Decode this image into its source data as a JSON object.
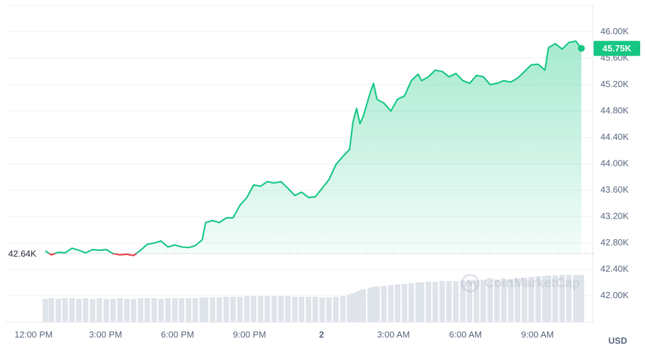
{
  "chart_data": {
    "type": "line",
    "color": "#16c784",
    "below_color": "#ea3943",
    "x": [
      0.49,
      0.74,
      1.03,
      1.31,
      1.6,
      1.89,
      2.17,
      2.46,
      2.74,
      3.03,
      3.31,
      3.6,
      3.89,
      4.17,
      4.46,
      4.74,
      5.03,
      5.31,
      5.6,
      5.89,
      6.17,
      6.46,
      6.74,
      7.03,
      7.17,
      7.46,
      7.74,
      8.03,
      8.31,
      8.6,
      8.89,
      9.17,
      9.46,
      9.74,
      10.03,
      10.31,
      10.6,
      10.89,
      11.17,
      11.46,
      11.74,
      12.03,
      12.31,
      12.6,
      12.89,
      13.17,
      13.31,
      13.46,
      13.6,
      13.74,
      14.03,
      14.17,
      14.31,
      14.6,
      14.89,
      15.17,
      15.46,
      15.74,
      16.03,
      16.17,
      16.46,
      16.74,
      17.03,
      17.31,
      17.6,
      17.89,
      18.17,
      18.46,
      18.74,
      19.03,
      19.31,
      19.6,
      19.89,
      20.17,
      20.46,
      20.74,
      21.03,
      21.31,
      21.46,
      21.74,
      22.03,
      22.31,
      22.6,
      22.83
    ],
    "values": [
      42680,
      42620,
      42660,
      42650,
      42720,
      42690,
      42650,
      42700,
      42690,
      42700,
      42640,
      42620,
      42630,
      42610,
      42690,
      42780,
      42800,
      42830,
      42740,
      42770,
      42740,
      42730,
      42760,
      42850,
      43110,
      43140,
      43110,
      43180,
      43180,
      43370,
      43490,
      43680,
      43660,
      43730,
      43710,
      43730,
      43630,
      43520,
      43570,
      43490,
      43500,
      43630,
      43760,
      43990,
      44110,
      44220,
      44630,
      44840,
      44610,
      44720,
      45080,
      45220,
      44980,
      44920,
      44800,
      44980,
      45030,
      45260,
      45360,
      45260,
      45320,
      45420,
      45400,
      45320,
      45370,
      45260,
      45220,
      45340,
      45320,
      45200,
      45220,
      45260,
      45240,
      45300,
      45400,
      45500,
      45510,
      45420,
      45760,
      45820,
      45740,
      45840,
      45860,
      45750
    ],
    "volume": [
      34,
      35,
      34,
      35,
      35,
      34,
      35,
      34,
      35,
      34,
      34,
      35,
      34,
      34,
      35,
      35,
      35,
      34,
      35,
      35,
      35,
      35,
      35,
      36,
      36,
      36,
      36,
      37,
      37,
      37,
      38,
      38,
      38,
      38,
      38,
      38,
      38,
      37,
      37,
      37,
      37,
      36,
      36,
      37,
      38,
      40,
      42,
      44,
      46,
      48,
      50,
      51,
      52,
      53,
      54,
      55,
      56,
      57,
      58,
      58,
      59,
      59,
      60,
      60,
      60,
      61,
      61,
      61,
      62,
      62,
      62,
      63,
      63,
      64,
      65,
      66,
      67,
      67,
      68,
      68,
      69,
      69,
      69,
      69
    ],
    "volume_lim": [
      0,
      100
    ],
    "volume_color": "#dfe3ea",
    "xlim": [
      -1.17,
      23.31
    ],
    "xticks": [
      {
        "value": 0,
        "label": "12:00 PM"
      },
      {
        "value": 3,
        "label": "3:00 PM"
      },
      {
        "value": 6,
        "label": "6:00 PM"
      },
      {
        "value": 9,
        "label": "9:00 PM"
      },
      {
        "value": 12,
        "label": "2"
      },
      {
        "value": 15,
        "label": "3:00 AM"
      },
      {
        "value": 18,
        "label": "6:00 AM"
      },
      {
        "value": 21,
        "label": "9:00 AM"
      }
    ],
    "ylim": [
      41600,
      46400
    ],
    "yticks": [
      {
        "value": 42000,
        "label": "42.00K"
      },
      {
        "value": 42400,
        "label": "42.40K"
      },
      {
        "value": 42800,
        "label": "42.80K"
      },
      {
        "value": 43200,
        "label": "43.20K"
      },
      {
        "value": 43600,
        "label": "43.60K"
      },
      {
        "value": 44000,
        "label": "44.00K"
      },
      {
        "value": 44400,
        "label": "44.40K"
      },
      {
        "value": 44800,
        "label": "44.80K"
      },
      {
        "value": 45200,
        "label": "45.20K"
      },
      {
        "value": 45600,
        "label": "45.60K"
      },
      {
        "value": 46000,
        "label": "46.00K"
      }
    ],
    "grid": true,
    "baseline": 42640,
    "baseline_label": "42.64K",
    "last_label": "45.75K",
    "currency": "USD",
    "watermark": "CoinMarketCap"
  }
}
